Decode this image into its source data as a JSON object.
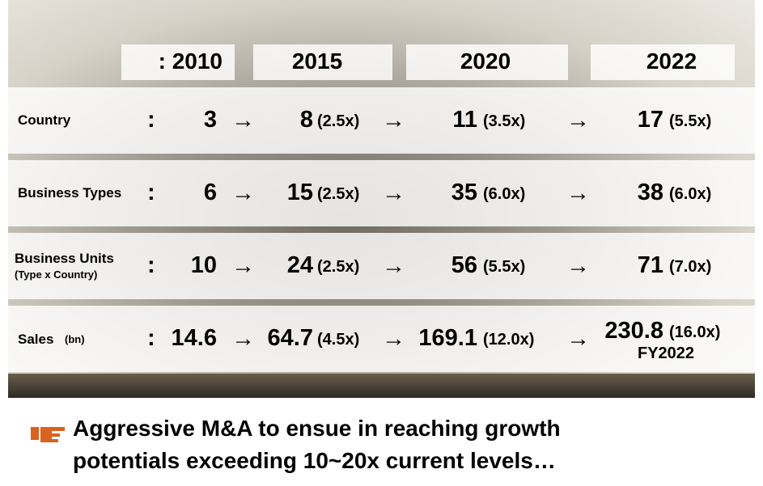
{
  "header": {
    "years": [
      ": 2010",
      "2015",
      "2020",
      "2022"
    ]
  },
  "separator": ":",
  "arrow": "→",
  "rows": [
    {
      "label": "Country",
      "cells": [
        {
          "value": "3"
        },
        {
          "value": "8",
          "ratio": "(2.5x)"
        },
        {
          "value": "11",
          "ratio": "(3.5x)"
        },
        {
          "value": "17",
          "ratio": "(5.5x)"
        }
      ]
    },
    {
      "label": "Business Types",
      "cells": [
        {
          "value": "6"
        },
        {
          "value": "15",
          "ratio": "(2.5x)"
        },
        {
          "value": "35",
          "ratio": "(6.0x)"
        },
        {
          "value": "38",
          "ratio": "(6.0x)"
        }
      ]
    },
    {
      "label": "Business Units",
      "sublabel": "(Type x Country)",
      "cells": [
        {
          "value": "10"
        },
        {
          "value": "24",
          "ratio": "(2.5x)"
        },
        {
          "value": "56",
          "ratio": "(5.5x)"
        },
        {
          "value": "71",
          "ratio": "(7.0x)"
        }
      ]
    },
    {
      "label": "Sales",
      "unit": "(bn)",
      "cells": [
        {
          "value": "14.6"
        },
        {
          "value": "64.7",
          "ratio": "(4.5x)"
        },
        {
          "value": "169.1",
          "ratio": "(12.0x)"
        },
        {
          "value": "230.8",
          "ratio": "(16.0x)",
          "note": "FY2022"
        }
      ]
    }
  ],
  "footer": {
    "lines": [
      "Aggressive M&A to ensue in reaching growth",
      "potentials exceeding 10~20x current levels…"
    ]
  }
}
